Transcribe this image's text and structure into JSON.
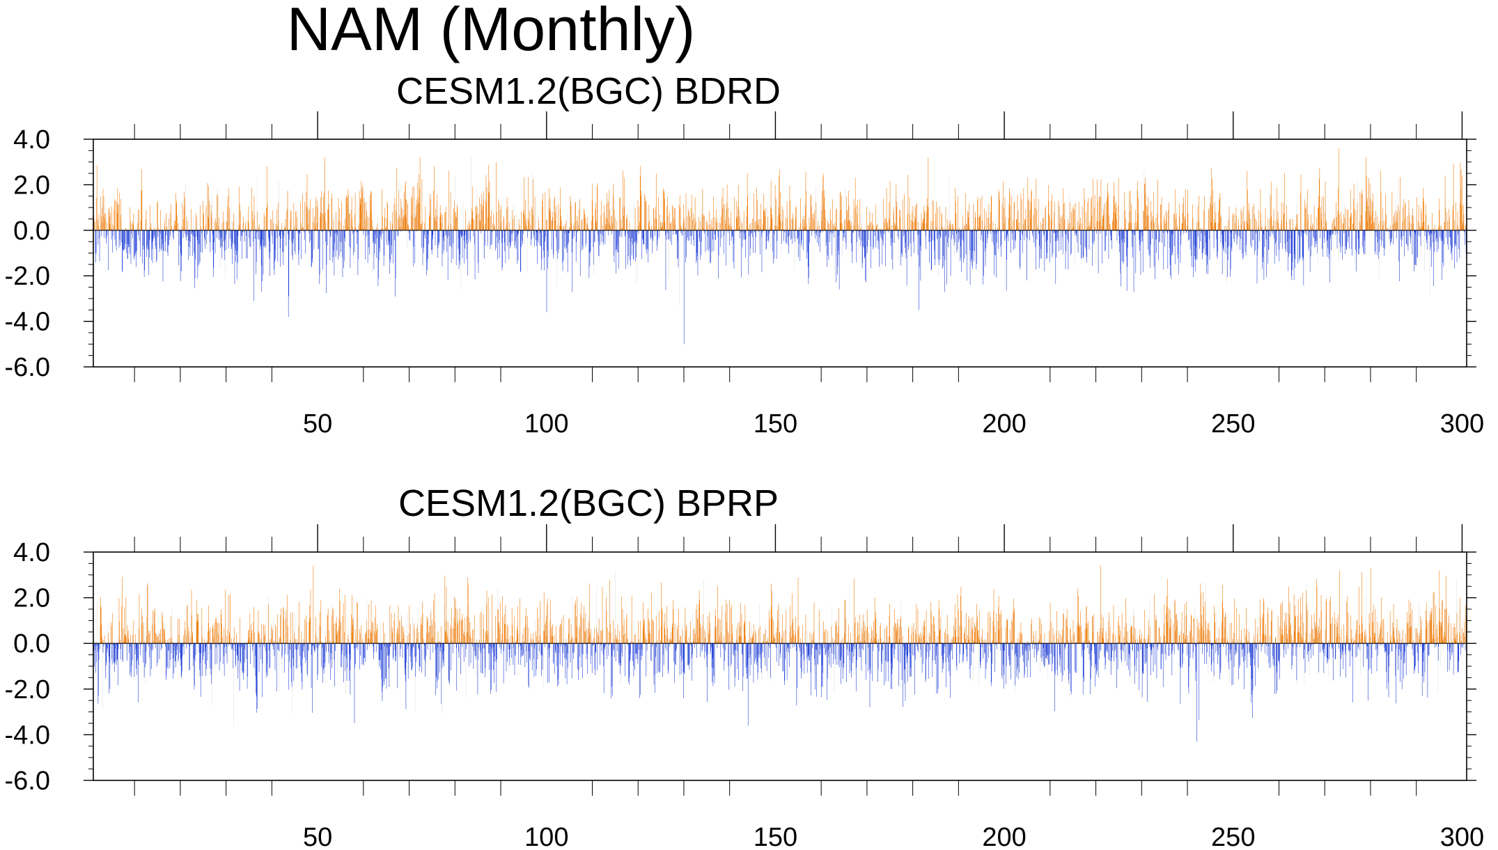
{
  "title": "NAM (Monthly)",
  "chart_data": [
    {
      "type": "bar",
      "title": "CESM1.2(BGC) BDRD",
      "xlim": [
        1,
        301
      ],
      "ylim": [
        -6.0,
        4.0
      ],
      "yticks": [
        "4.0",
        "2.0",
        "0.0",
        "-2.0",
        "-4.0",
        "-6.0"
      ],
      "yticks_values": [
        4,
        2,
        0,
        -2,
        -4,
        -6
      ],
      "xticks": [
        "50",
        "100",
        "150",
        "200",
        "250",
        "300"
      ],
      "xticks_values": [
        50,
        100,
        150,
        200,
        250,
        300
      ],
      "n_months": 3600,
      "seed": 1171,
      "notable_peaks": [
        {
          "x": 89,
          "y": 3.0
        },
        {
          "x": 273,
          "y": 3.6
        },
        {
          "x": 279,
          "y": 3.2
        },
        {
          "x": 300,
          "y": 2.4
        }
      ],
      "notable_troughs": [
        {
          "x": 100,
          "y": -3.6
        },
        {
          "x": 129,
          "y": -3.3
        },
        {
          "x": 130,
          "y": -5.0
        },
        {
          "x": 36,
          "y": -3.1
        }
      ],
      "positive_color": "#f07d0a",
      "negative_color": "#2342d8",
      "faint_color": "#dcdcdc"
    },
    {
      "type": "bar",
      "title": "CESM1.2(BGC) BPRP",
      "xlim": [
        1,
        301
      ],
      "ylim": [
        -6.0,
        4.0
      ],
      "yticks": [
        "4.0",
        "2.0",
        "0.0",
        "-2.0",
        "-4.0",
        "-6.0"
      ],
      "yticks_values": [
        4,
        2,
        0,
        -2,
        -4,
        -6
      ],
      "xticks": [
        "50",
        "100",
        "150",
        "200",
        "250",
        "300"
      ],
      "xticks_values": [
        50,
        100,
        150,
        200,
        250,
        300
      ],
      "n_months": 3600,
      "seed": 4242,
      "notable_peaks": [
        {
          "x": 49,
          "y": 3.4
        },
        {
          "x": 115,
          "y": 3.2
        },
        {
          "x": 221,
          "y": 3.4
        },
        {
          "x": 280,
          "y": 3.3
        }
      ],
      "notable_troughs": [
        {
          "x": 242,
          "y": -4.3
        },
        {
          "x": 58,
          "y": -3.5
        },
        {
          "x": 144,
          "y": -3.6
        },
        {
          "x": 3,
          "y": -2.9
        }
      ],
      "positive_color": "#f07d0a",
      "negative_color": "#2342d8",
      "faint_color": "#dcdcdc"
    }
  ]
}
